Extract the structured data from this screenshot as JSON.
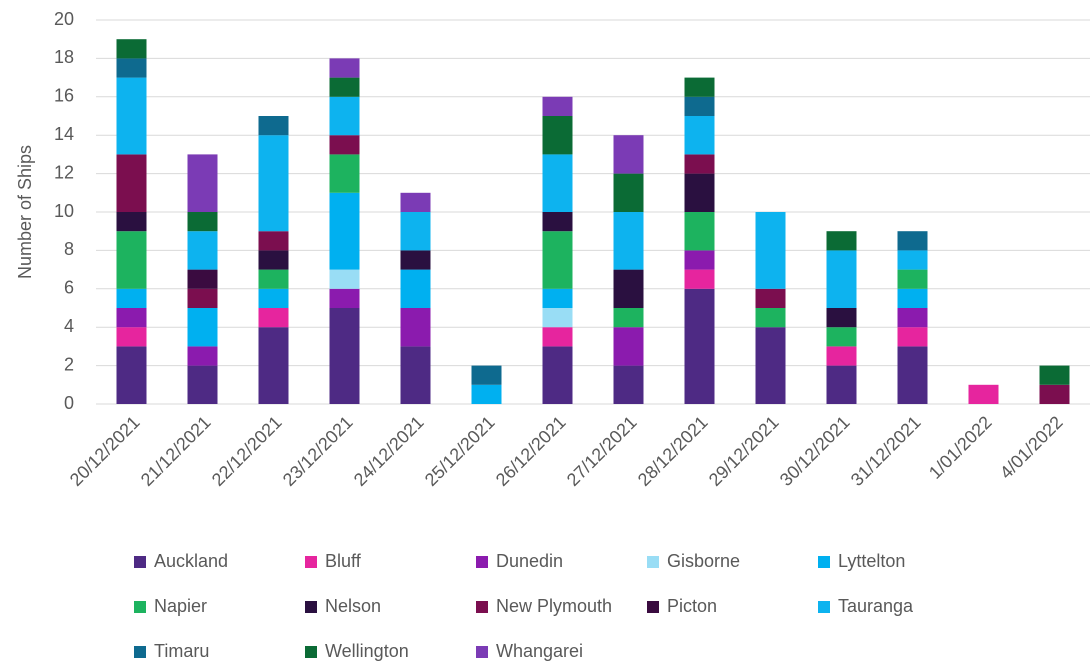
{
  "chart_data": {
    "type": "stacked_bar",
    "ylabel": "Number of Ships",
    "categories": [
      "20/12/2021",
      "21/12/2021",
      "22/12/2021",
      "23/12/2021",
      "24/12/2021",
      "25/12/2021",
      "26/12/2021",
      "27/12/2021",
      "28/12/2021",
      "29/12/2021",
      "30/12/2021",
      "31/12/2021",
      "1/01/2022",
      "4/01/2022"
    ],
    "series": [
      {
        "name": "Auckland",
        "color": "#4e2a84",
        "values": [
          3,
          2,
          4,
          5,
          3,
          0,
          3,
          2,
          6,
          4,
          2,
          3,
          0,
          0
        ]
      },
      {
        "name": "Bluff",
        "color": "#e6259e",
        "values": [
          1,
          0,
          1,
          0,
          0,
          0,
          1,
          0,
          1,
          0,
          1,
          1,
          1,
          0
        ]
      },
      {
        "name": "Dunedin",
        "color": "#8b1bae",
        "values": [
          1,
          1,
          0,
          1,
          2,
          0,
          0,
          2,
          1,
          0,
          0,
          1,
          0,
          0
        ]
      },
      {
        "name": "Gisborne",
        "color": "#99ddf5",
        "values": [
          0,
          0,
          0,
          1,
          0,
          0,
          1,
          0,
          0,
          0,
          0,
          0,
          0,
          0
        ]
      },
      {
        "name": "Lyttelton",
        "color": "#00b0f0",
        "values": [
          1,
          2,
          1,
          4,
          2,
          1,
          1,
          0,
          0,
          0,
          0,
          1,
          0,
          0
        ]
      },
      {
        "name": "Napier",
        "color": "#1db35f",
        "values": [
          3,
          0,
          1,
          2,
          0,
          0,
          3,
          1,
          2,
          1,
          1,
          1,
          0,
          0
        ]
      },
      {
        "name": "Nelson",
        "color": "#2a1040",
        "values": [
          1,
          0,
          1,
          0,
          1,
          0,
          1,
          2,
          2,
          0,
          1,
          0,
          0,
          0
        ]
      },
      {
        "name": "New Plymouth",
        "color": "#7b0e4f",
        "values": [
          3,
          1,
          1,
          1,
          0,
          0,
          0,
          0,
          1,
          1,
          0,
          0,
          0,
          1
        ]
      },
      {
        "name": "Picton",
        "color": "#3a0b40",
        "values": [
          0,
          1,
          0,
          0,
          0,
          0,
          0,
          0,
          0,
          0,
          0,
          0,
          0,
          0
        ]
      },
      {
        "name": "Tauranga",
        "color": "#0db3ef",
        "values": [
          4,
          2,
          5,
          2,
          2,
          0,
          3,
          3,
          2,
          4,
          3,
          1,
          0,
          0
        ]
      },
      {
        "name": "Timaru",
        "color": "#0e6a8f",
        "values": [
          1,
          0,
          1,
          0,
          0,
          1,
          0,
          0,
          1,
          0,
          0,
          1,
          0,
          0
        ]
      },
      {
        "name": "Wellington",
        "color": "#0b6b35",
        "values": [
          1,
          1,
          0,
          1,
          0,
          0,
          2,
          2,
          1,
          0,
          1,
          0,
          0,
          1
        ]
      },
      {
        "name": "Whangarei",
        "color": "#7b3bb5",
        "values": [
          0,
          3,
          0,
          1,
          1,
          0,
          1,
          2,
          0,
          0,
          0,
          0,
          0,
          0
        ]
      }
    ],
    "ylim": [
      0,
      20
    ],
    "yticks": [
      0,
      2,
      4,
      6,
      8,
      10,
      12,
      14,
      16,
      18,
      20
    ],
    "grid": true
  }
}
